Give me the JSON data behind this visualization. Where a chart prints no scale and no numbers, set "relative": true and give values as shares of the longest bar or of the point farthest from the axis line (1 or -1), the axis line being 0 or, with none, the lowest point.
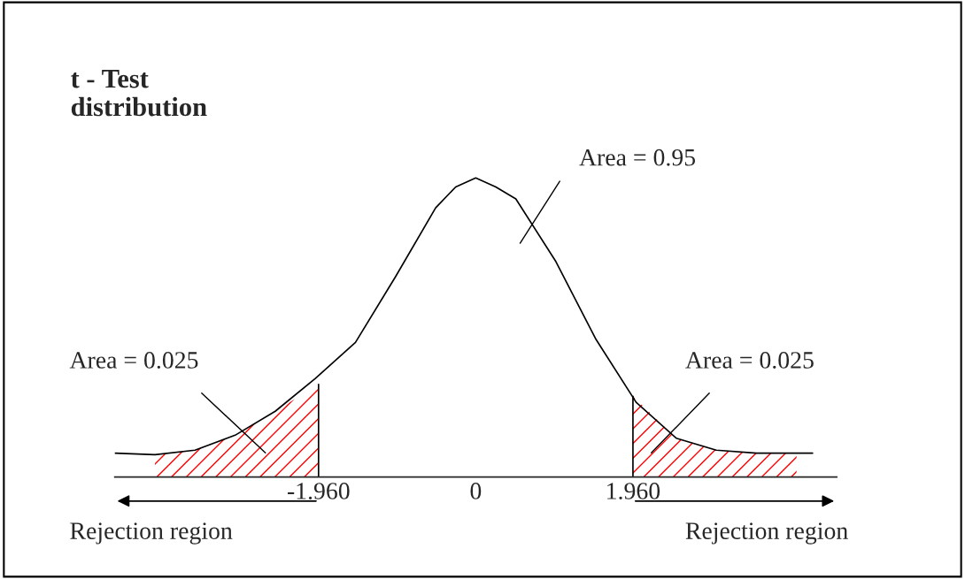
{
  "chart_data": {
    "type": "line",
    "title": "t - Test\ndistribution",
    "relative": true,
    "x": [
      -4.5,
      -4.0,
      -3.5,
      -3.0,
      -2.5,
      -2.0,
      -1.5,
      -1.0,
      -0.5,
      -0.25,
      0,
      0.25,
      0.5,
      1.0,
      1.5,
      2.0,
      2.5,
      3.0,
      3.5,
      4.0,
      4.2
    ],
    "series": [
      {
        "color": "#000000",
        "values": [
          0.08,
          0.075,
          0.09,
          0.14,
          0.22,
          0.33,
          0.45,
          0.67,
          0.9,
          0.97,
          1,
          0.97,
          0.93,
          0.72,
          0.46,
          0.25,
          0.13,
          0.09,
          0.08,
          0.08,
          0.08
        ]
      },
      {
        "type": "area",
        "color": "#ff0000",
        "x": [
          -4.0,
          -3.5,
          -3.0,
          -2.5,
          -1.96
        ],
        "values": [
          0.075,
          0.09,
          0.14,
          0.22,
          0.31
        ]
      },
      {
        "type": "area",
        "color": "#ff0000",
        "x": [
          1.96,
          2.5,
          3.0,
          3.5,
          4.0
        ],
        "values": [
          0.27,
          0.13,
          0.09,
          0.08,
          0.08
        ]
      }
    ],
    "xlim": [
      -4.5,
      4.5
    ],
    "xticks": [
      {
        "value": -1.96,
        "label": "-1.960"
      },
      0,
      {
        "value": 1.96,
        "label": "1.960"
      }
    ],
    "annotations": [
      "Area = 0.95",
      "Area = 0.025",
      "Area = 0.025",
      "Rejection region",
      "Rejection region"
    ],
    "grid": false,
    "legend": false,
    "line_style": "solid",
    "marker": "none"
  }
}
